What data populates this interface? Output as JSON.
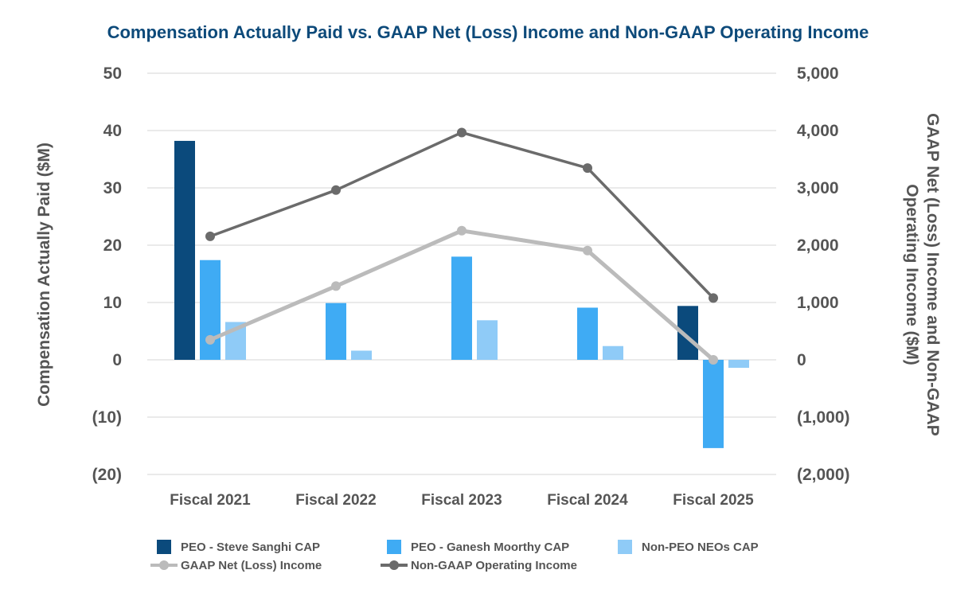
{
  "chart_data": {
    "type": "bar",
    "title": "Compensation Actually Paid vs. GAAP Net (Loss) Income and Non-GAAP Operating Income",
    "categories": [
      "Fiscal 2021",
      "Fiscal 2022",
      "Fiscal 2023",
      "Fiscal 2024",
      "Fiscal 2025"
    ],
    "ylabel": "Compensation Actually Paid  ($M)",
    "y2label_line1": "GAAP Net (Loss) Income and Non-GAAP",
    "y2label_line2": "Operating Income ($M)",
    "ylim": [
      -20,
      50
    ],
    "y2lim": [
      -2000,
      5000
    ],
    "y_ticks": [
      {
        "value": 50,
        "label": "50"
      },
      {
        "value": 40,
        "label": "40"
      },
      {
        "value": 30,
        "label": "30"
      },
      {
        "value": 20,
        "label": "20"
      },
      {
        "value": 10,
        "label": "10"
      },
      {
        "value": 0,
        "label": "0"
      },
      {
        "value": -10,
        "label": "(10)"
      },
      {
        "value": -20,
        "label": "(20)"
      }
    ],
    "y2_ticks": [
      {
        "value": 5000,
        "label": "5,000"
      },
      {
        "value": 4000,
        "label": "4,000"
      },
      {
        "value": 3000,
        "label": "3,000"
      },
      {
        "value": 2000,
        "label": "2,000"
      },
      {
        "value": 1000,
        "label": "1,000"
      },
      {
        "value": 0,
        "label": "0"
      },
      {
        "value": -1000,
        "label": "(1,000)"
      },
      {
        "value": -2000,
        "label": "(2,000)"
      }
    ],
    "grid": true,
    "legend_position": "bottom",
    "series": [
      {
        "name": "PEO - Steve Sanghi CAP",
        "type": "bar",
        "axis": "left",
        "color": "#0b4a7c",
        "values": [
          38.2,
          null,
          null,
          null,
          9.4
        ]
      },
      {
        "name": "PEO - Ganesh Moorthy CAP",
        "type": "bar",
        "axis": "left",
        "color": "#3fabf4",
        "values": [
          17.4,
          9.9,
          18.0,
          9.1,
          -15.4
        ]
      },
      {
        "name": "Non-PEO NEOs CAP",
        "type": "bar",
        "axis": "left",
        "color": "#8fcbf7",
        "values": [
          6.6,
          1.6,
          6.9,
          2.4,
          -1.4
        ]
      },
      {
        "name": "GAAP Net (Loss) Income",
        "type": "line",
        "axis": "right",
        "color": "#bbbbbb",
        "values": [
          349,
          1286,
          2253,
          1907,
          0
        ]
      },
      {
        "name": "Non-GAAP Operating Income",
        "type": "line",
        "axis": "right",
        "color": "#6b6b6b",
        "values": [
          2154,
          2961,
          3966,
          3346,
          1078
        ]
      }
    ]
  }
}
